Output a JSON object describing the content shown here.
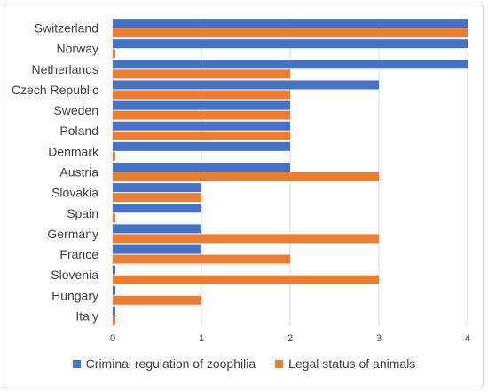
{
  "chart_data": {
    "type": "bar",
    "orientation": "horizontal",
    "categories": [
      "Switzerland",
      "Norway",
      "Netherlands",
      "Czech Republic",
      "Sweden",
      "Poland",
      "Denmark",
      "Austria",
      "Slovakia",
      "Spain",
      "Germany",
      "France",
      "Slovenia",
      "Hungary",
      "Italy"
    ],
    "series": [
      {
        "name": "Criminal regulation of zoophilia",
        "color": "#4472C4",
        "values": [
          4,
          4,
          4,
          3,
          2,
          2,
          2,
          2,
          1,
          1,
          1,
          1,
          0,
          0,
          0
        ]
      },
      {
        "name": "Legal status of animals",
        "color": "#ED7D31",
        "values": [
          4,
          0,
          2,
          2,
          2,
          2,
          0,
          3,
          1,
          0,
          3,
          2,
          3,
          1,
          0
        ]
      }
    ],
    "xlim": [
      0,
      4
    ],
    "xticks": [
      "0",
      "1",
      "2",
      "3",
      "4"
    ],
    "grid": "vertical",
    "legend_position": "bottom"
  }
}
